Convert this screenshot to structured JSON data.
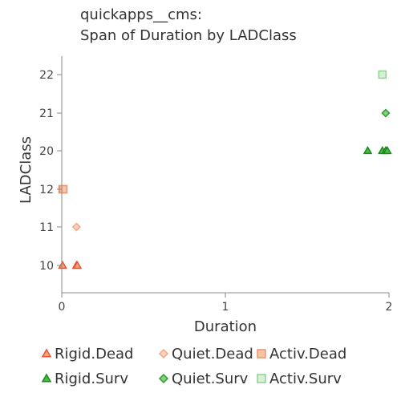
{
  "chart_data": {
    "type": "scatter",
    "title_lines": [
      "quickapps__cms:",
      "Span of Duration by LADClass"
    ],
    "xlabel": "Duration",
    "ylabel": "LADClass",
    "xlim": [
      0,
      2
    ],
    "x_ticks": [
      0,
      1,
      2
    ],
    "y_categories": [
      10,
      11,
      12,
      20,
      21,
      22
    ],
    "grid": false,
    "legend_position": "bottom",
    "series": [
      {
        "name": "Rigid.Dead",
        "marker": "triangle",
        "color": "#e8522e",
        "fill": "#f4a582",
        "points": [
          {
            "x": 0.0,
            "y": 10
          },
          {
            "x": 0.09,
            "y": 10
          },
          {
            "x": 0.095,
            "y": 10
          }
        ]
      },
      {
        "name": "Quiet.Dead",
        "marker": "diamond",
        "color": "#f4a582",
        "fill": "#fbd3c0",
        "points": [
          {
            "x": 0.09,
            "y": 11
          }
        ]
      },
      {
        "name": "Activ.Dead",
        "marker": "square",
        "color": "#f0936c",
        "fill": "#f7c4a8",
        "points": [
          {
            "x": 0.0,
            "y": 12
          },
          {
            "x": 0.01,
            "y": 12
          }
        ]
      },
      {
        "name": "Rigid.Surv",
        "marker": "triangle",
        "color": "#1a8a1a",
        "fill": "#4cbb4c",
        "points": [
          {
            "x": 1.87,
            "y": 20
          },
          {
            "x": 1.96,
            "y": 20
          },
          {
            "x": 1.98,
            "y": 20
          },
          {
            "x": 1.99,
            "y": 20
          }
        ]
      },
      {
        "name": "Quiet.Surv",
        "marker": "diamond",
        "color": "#2e9e2e",
        "fill": "#7fd17f",
        "points": [
          {
            "x": 1.98,
            "y": 21
          }
        ]
      },
      {
        "name": "Activ.Surv",
        "marker": "square",
        "color": "#8fd18f",
        "fill": "#d8f0d8",
        "points": [
          {
            "x": 1.96,
            "y": 22
          }
        ]
      }
    ]
  }
}
